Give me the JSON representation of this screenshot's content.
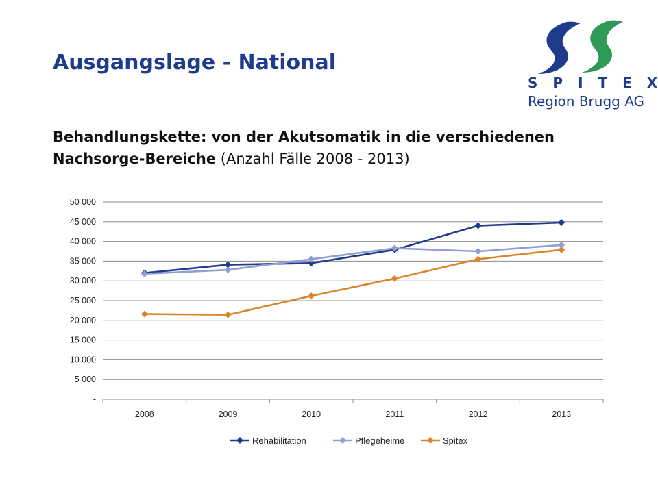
{
  "header": {
    "title": "Ausgangslage - National",
    "subtitle_bold_1": "Behandlungskette: von der Akutsomatik in die verschiedenen",
    "subtitle_bold_2": "Nachsorge-Bereiche",
    "subtitle_rest": " (Anzahl Fälle 2008 - 2013)"
  },
  "logo": {
    "word": "SPITEX",
    "sub": "Region Brugg AG",
    "colors": {
      "blue": "#1f3b8c",
      "green": "#2e9a55"
    }
  },
  "chart_data": {
    "type": "line",
    "title": "",
    "xlabel": "",
    "ylabel": "",
    "categories": [
      "2008",
      "2009",
      "2010",
      "2011",
      "2012",
      "2013"
    ],
    "ylim": [
      0,
      50000
    ],
    "yticks": [
      0,
      5000,
      10000,
      15000,
      20000,
      25000,
      30000,
      35000,
      40000,
      45000,
      50000
    ],
    "ytick_labels": [
      "-",
      "5 000",
      "10 000",
      "15 000",
      "20 000",
      "25 000",
      "30 000",
      "35 000",
      "40 000",
      "45 000",
      "50 000"
    ],
    "grid": true,
    "legend_position": "bottom",
    "marker": "diamond",
    "series": [
      {
        "name": "Rehabilitation",
        "color": "#1f3b8c",
        "values": [
          32000,
          34100,
          34500,
          37900,
          44000,
          44800
        ]
      },
      {
        "name": "Pflegeheime",
        "color": "#8e9fd0",
        "values": [
          31800,
          32800,
          35500,
          38300,
          37500,
          39100
        ]
      },
      {
        "name": "Spitex",
        "color": "#d9852a",
        "values": [
          21600,
          21400,
          26200,
          30600,
          35500,
          37900
        ]
      }
    ]
  }
}
